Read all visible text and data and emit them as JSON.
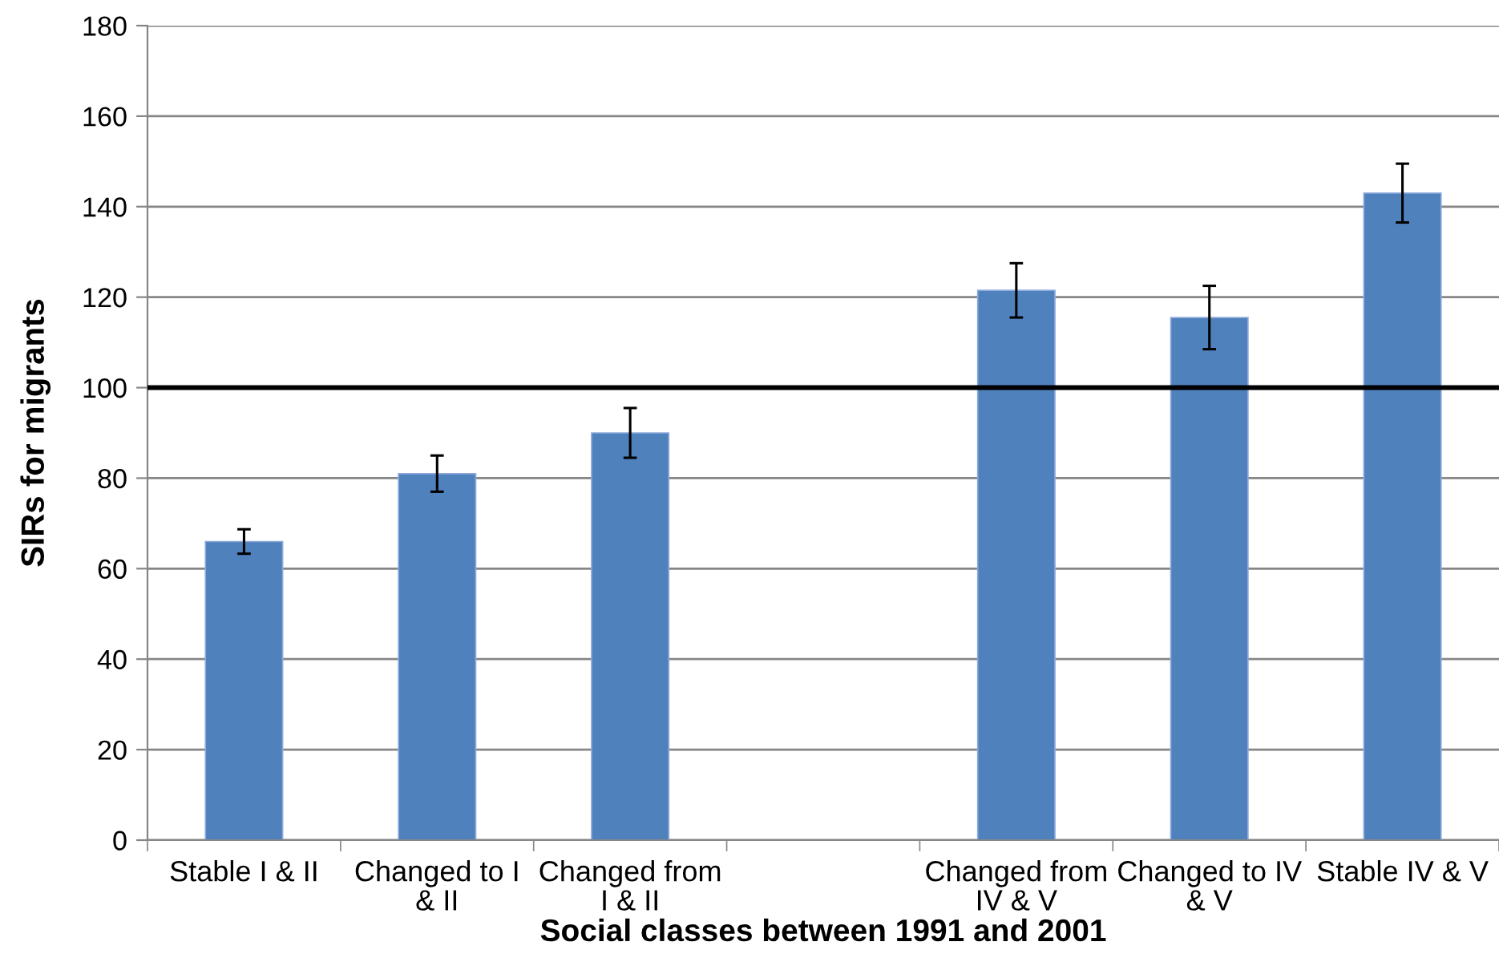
{
  "chart_data": {
    "type": "bar",
    "xlabel": "Social classes between 1991 and 2001",
    "ylabel": "SIRs for migrants",
    "categories": [
      "Stable I & II",
      "Changed to I & II",
      "Changed from I & II",
      null,
      "Changed from IV & V",
      "Changed to IV & V",
      "Stable IV & V"
    ],
    "values": [
      66,
      81,
      90,
      null,
      121.5,
      115.5,
      143
    ],
    "errors": [
      2.7,
      4,
      5.5,
      null,
      6,
      7,
      6.5
    ],
    "color": "#4f81bd",
    "ylim": [
      0,
      180
    ],
    "yticks": [
      0,
      20,
      40,
      60,
      80,
      100,
      120,
      140,
      160,
      180
    ],
    "grid": "y",
    "ref_lines": [
      {
        "axis": "y",
        "value": 100,
        "color": "#000000"
      }
    ]
  }
}
